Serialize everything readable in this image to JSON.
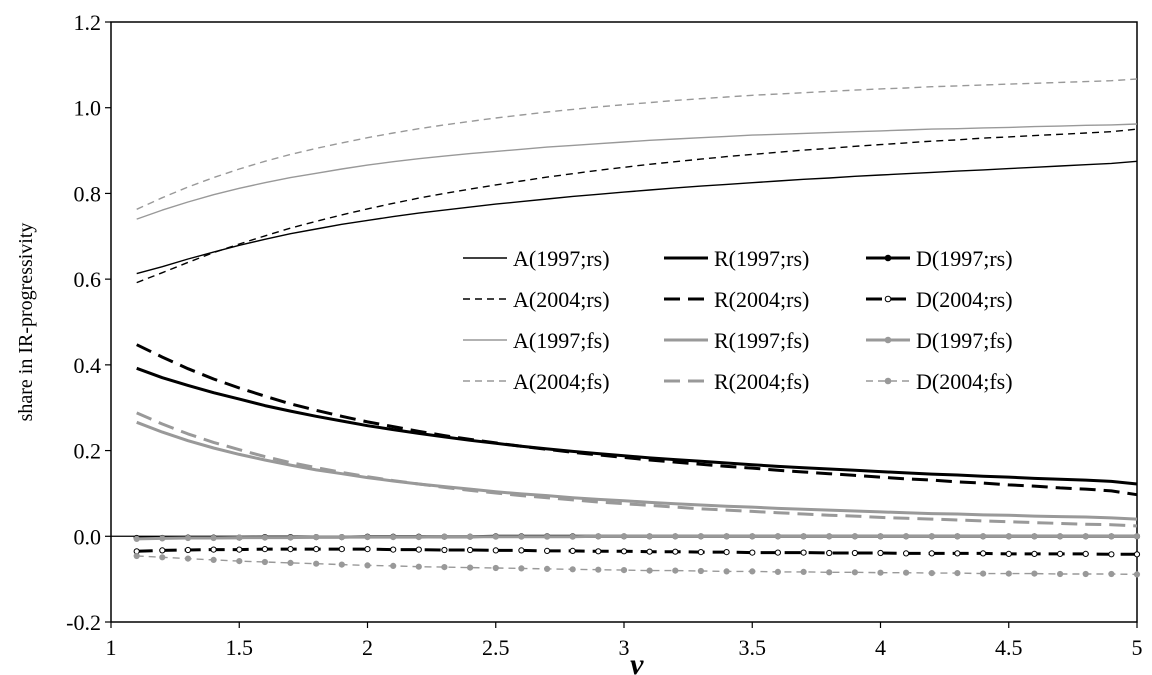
{
  "chart_data": {
    "type": "line",
    "title": "",
    "xlabel": "ν",
    "ylabel": "share in IR-progressivity",
    "xlim": [
      1,
      5
    ],
    "ylim": [
      -0.2,
      1.2
    ],
    "x_ticks": [
      "1",
      "1.5",
      "2",
      "2.5",
      "3",
      "3.5",
      "4",
      "4.5",
      "5"
    ],
    "y_ticks": [
      "-0.2",
      "0.0",
      "0.2",
      "0.4",
      "0.6",
      "0.8",
      "1.0",
      "1.2"
    ],
    "grid": false,
    "legend_position": "center-right",
    "x": [
      1.1,
      1.2,
      1.3,
      1.4,
      1.5,
      1.6,
      1.7,
      1.8,
      1.9,
      2.0,
      2.1,
      2.2,
      2.3,
      2.4,
      2.5,
      2.6,
      2.7,
      2.8,
      2.9,
      3.0,
      3.1,
      3.2,
      3.3,
      3.4,
      3.5,
      3.6,
      3.7,
      3.8,
      3.9,
      4.0,
      4.1,
      4.2,
      4.3,
      4.4,
      4.5,
      4.6,
      4.7,
      4.8,
      4.9,
      5.0
    ],
    "series": [
      {
        "name": "A(1997;rs)",
        "color": "#000000",
        "style": "solid",
        "width": "thin",
        "marker": "none",
        "values": [
          0.613,
          0.629,
          0.647,
          0.663,
          0.679,
          0.693,
          0.706,
          0.717,
          0.728,
          0.737,
          0.746,
          0.754,
          0.761,
          0.768,
          0.775,
          0.781,
          0.787,
          0.793,
          0.798,
          0.803,
          0.808,
          0.813,
          0.817,
          0.821,
          0.825,
          0.829,
          0.833,
          0.836,
          0.84,
          0.843,
          0.846,
          0.849,
          0.852,
          0.855,
          0.858,
          0.861,
          0.864,
          0.867,
          0.87,
          0.875
        ]
      },
      {
        "name": "R(1997;rs)",
        "color": "#000000",
        "style": "solid",
        "width": "thick",
        "marker": "none",
        "values": [
          0.392,
          0.37,
          0.352,
          0.335,
          0.32,
          0.305,
          0.292,
          0.28,
          0.269,
          0.258,
          0.249,
          0.24,
          0.232,
          0.224,
          0.217,
          0.21,
          0.204,
          0.198,
          0.193,
          0.188,
          0.183,
          0.179,
          0.175,
          0.171,
          0.167,
          0.163,
          0.16,
          0.157,
          0.154,
          0.151,
          0.148,
          0.145,
          0.143,
          0.14,
          0.138,
          0.135,
          0.133,
          0.131,
          0.128,
          0.122
        ]
      },
      {
        "name": "D(1997;rs)",
        "color": "#000000",
        "style": "solid",
        "width": "thick",
        "marker": "filled",
        "values": [
          -0.004,
          -0.004,
          -0.003,
          -0.003,
          -0.003,
          -0.002,
          -0.002,
          -0.002,
          -0.002,
          -0.001,
          -0.001,
          -0.001,
          -0.001,
          -0.001,
          0.0,
          0.0,
          0.0,
          0.0,
          0.0,
          0.0,
          0.0,
          0.0,
          0.0,
          0.0,
          0.0,
          0.0,
          0.0,
          0.0,
          0.0,
          0.0,
          0.0,
          0.0,
          0.0,
          0.0,
          0.0,
          0.0,
          0.0,
          0.0,
          0.0,
          0.0
        ]
      },
      {
        "name": "A(2004;rs)",
        "color": "#000000",
        "style": "dashed",
        "width": "thin",
        "marker": "none",
        "values": [
          0.592,
          0.615,
          0.639,
          0.662,
          0.682,
          0.701,
          0.719,
          0.735,
          0.75,
          0.764,
          0.777,
          0.789,
          0.8,
          0.81,
          0.82,
          0.829,
          0.838,
          0.846,
          0.854,
          0.861,
          0.868,
          0.874,
          0.88,
          0.886,
          0.891,
          0.896,
          0.901,
          0.905,
          0.91,
          0.914,
          0.918,
          0.922,
          0.925,
          0.929,
          0.932,
          0.935,
          0.938,
          0.941,
          0.944,
          0.95
        ]
      },
      {
        "name": "R(2004;rs)",
        "color": "#000000",
        "style": "dashed",
        "width": "thick",
        "marker": "none",
        "values": [
          0.447,
          0.418,
          0.391,
          0.367,
          0.346,
          0.327,
          0.309,
          0.294,
          0.28,
          0.267,
          0.256,
          0.245,
          0.235,
          0.226,
          0.218,
          0.21,
          0.203,
          0.196,
          0.19,
          0.184,
          0.178,
          0.173,
          0.168,
          0.163,
          0.159,
          0.154,
          0.15,
          0.146,
          0.142,
          0.138,
          0.134,
          0.131,
          0.127,
          0.124,
          0.12,
          0.117,
          0.113,
          0.11,
          0.106,
          0.097
        ]
      },
      {
        "name": "D(2004;rs)",
        "color": "#000000",
        "style": "dashed",
        "width": "thick",
        "marker": "open",
        "values": [
          -0.035,
          -0.033,
          -0.032,
          -0.031,
          -0.031,
          -0.03,
          -0.03,
          -0.03,
          -0.03,
          -0.03,
          -0.031,
          -0.031,
          -0.032,
          -0.032,
          -0.033,
          -0.033,
          -0.034,
          -0.034,
          -0.035,
          -0.035,
          -0.036,
          -0.036,
          -0.037,
          -0.037,
          -0.038,
          -0.038,
          -0.038,
          -0.039,
          -0.039,
          -0.039,
          -0.04,
          -0.04,
          -0.04,
          -0.04,
          -0.041,
          -0.041,
          -0.041,
          -0.041,
          -0.042,
          -0.042
        ]
      },
      {
        "name": "A(1997;fs)",
        "color": "#999999",
        "style": "solid",
        "width": "thin",
        "marker": "none",
        "values": [
          0.74,
          0.761,
          0.78,
          0.797,
          0.812,
          0.825,
          0.837,
          0.847,
          0.857,
          0.866,
          0.874,
          0.881,
          0.887,
          0.893,
          0.898,
          0.903,
          0.908,
          0.912,
          0.916,
          0.92,
          0.924,
          0.927,
          0.93,
          0.933,
          0.936,
          0.938,
          0.94,
          0.942,
          0.944,
          0.946,
          0.948,
          0.95,
          0.951,
          0.953,
          0.954,
          0.956,
          0.957,
          0.959,
          0.96,
          0.962
        ]
      },
      {
        "name": "R(1997;fs)",
        "color": "#999999",
        "style": "solid",
        "width": "thick",
        "marker": "none",
        "values": [
          0.266,
          0.243,
          0.223,
          0.206,
          0.191,
          0.178,
          0.166,
          0.155,
          0.146,
          0.137,
          0.129,
          0.122,
          0.116,
          0.11,
          0.104,
          0.099,
          0.095,
          0.09,
          0.086,
          0.083,
          0.079,
          0.076,
          0.073,
          0.07,
          0.068,
          0.065,
          0.063,
          0.061,
          0.059,
          0.057,
          0.055,
          0.053,
          0.052,
          0.05,
          0.049,
          0.047,
          0.046,
          0.045,
          0.043,
          0.04
        ]
      },
      {
        "name": "D(1997;fs)",
        "color": "#999999",
        "style": "solid",
        "width": "thick",
        "marker": "filled",
        "values": [
          -0.006,
          -0.005,
          -0.004,
          -0.004,
          -0.003,
          -0.003,
          -0.003,
          -0.002,
          -0.002,
          -0.002,
          -0.002,
          -0.002,
          -0.001,
          -0.001,
          -0.001,
          -0.001,
          -0.001,
          -0.001,
          0.0,
          0.0,
          0.0,
          0.0,
          0.0,
          0.0,
          0.0,
          0.0,
          0.0,
          0.0,
          0.0,
          0.0,
          0.0,
          0.0,
          0.0,
          0.0,
          0.0,
          0.0,
          0.0,
          0.0,
          0.0,
          0.0
        ]
      },
      {
        "name": "A(2004;fs)",
        "color": "#999999",
        "style": "dashed",
        "width": "thin",
        "marker": "none",
        "values": [
          0.763,
          0.79,
          0.815,
          0.837,
          0.857,
          0.875,
          0.891,
          0.905,
          0.918,
          0.93,
          0.941,
          0.951,
          0.96,
          0.968,
          0.976,
          0.983,
          0.99,
          0.996,
          1.002,
          1.007,
          1.012,
          1.017,
          1.021,
          1.025,
          1.029,
          1.032,
          1.035,
          1.038,
          1.041,
          1.044,
          1.046,
          1.049,
          1.051,
          1.053,
          1.055,
          1.057,
          1.059,
          1.061,
          1.063,
          1.067
        ]
      },
      {
        "name": "R(2004;fs)",
        "color": "#999999",
        "style": "dashed",
        "width": "thick",
        "marker": "none",
        "values": [
          0.288,
          0.262,
          0.239,
          0.219,
          0.202,
          0.186,
          0.172,
          0.16,
          0.149,
          0.139,
          0.13,
          0.122,
          0.114,
          0.107,
          0.101,
          0.095,
          0.09,
          0.085,
          0.08,
          0.076,
          0.072,
          0.068,
          0.064,
          0.061,
          0.058,
          0.055,
          0.052,
          0.049,
          0.047,
          0.044,
          0.042,
          0.04,
          0.038,
          0.036,
          0.034,
          0.032,
          0.03,
          0.028,
          0.027,
          0.024
        ]
      },
      {
        "name": "D(2004;fs)",
        "color": "#999999",
        "style": "dashed",
        "width": "thin",
        "marker": "filled",
        "values": [
          -0.046,
          -0.049,
          -0.052,
          -0.055,
          -0.058,
          -0.06,
          -0.062,
          -0.064,
          -0.066,
          -0.068,
          -0.069,
          -0.071,
          -0.072,
          -0.073,
          -0.074,
          -0.075,
          -0.076,
          -0.077,
          -0.078,
          -0.079,
          -0.08,
          -0.08,
          -0.081,
          -0.082,
          -0.082,
          -0.083,
          -0.083,
          -0.084,
          -0.084,
          -0.085,
          -0.085,
          -0.086,
          -0.086,
          -0.087,
          -0.087,
          -0.087,
          -0.088,
          -0.088,
          -0.088,
          -0.089
        ]
      }
    ],
    "legend_order": [
      [
        "A(1997;rs)",
        "R(1997;rs)",
        "D(1997;rs)"
      ],
      [
        "A(2004;rs)",
        "R(2004;rs)",
        "D(2004;rs)"
      ],
      [
        "A(1997;fs)",
        "R(1997;fs)",
        "D(1997;fs)"
      ],
      [
        "A(2004;fs)",
        "R(2004;fs)",
        "D(2004;fs)"
      ]
    ]
  }
}
